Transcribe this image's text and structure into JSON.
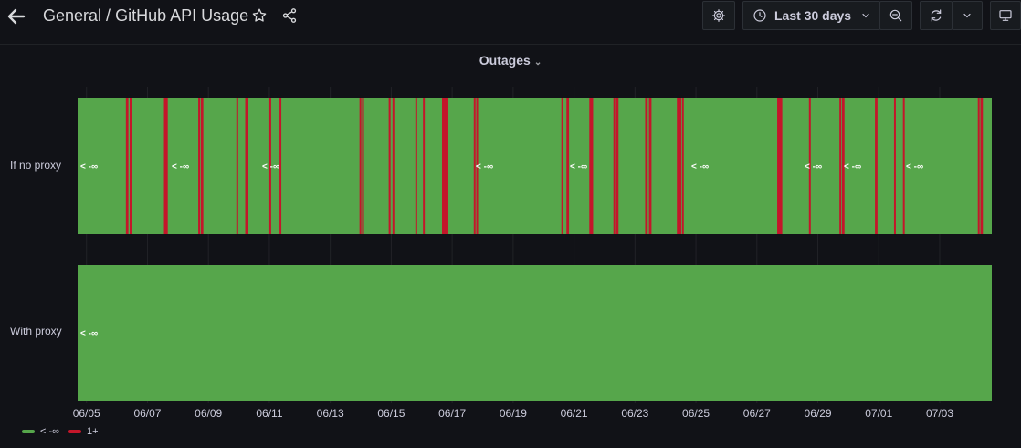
{
  "breadcrumb": {
    "folder": "General",
    "separator": " / ",
    "dashboard": "GitHub API Usage"
  },
  "toolbar": {
    "time_range_label": "Last 30 days",
    "icons": [
      "back-arrow-icon",
      "star-icon",
      "share-icon",
      "gear-icon",
      "clock-icon",
      "chevron-down-icon",
      "zoom-out-icon",
      "refresh-icon",
      "chevron-down-icon",
      "tv-monitor-icon"
    ]
  },
  "panel": {
    "title": "Outages",
    "title_chevron": "⌄"
  },
  "colors": {
    "ok": "#56a64b",
    "outage": "#c4162a",
    "background": "#111217"
  },
  "chart_data": {
    "type": "heatmap",
    "title": "Outages",
    "rows": [
      "If no proxy",
      "With proxy"
    ],
    "x_axis": {
      "ticks": [
        "06/05",
        "06/07",
        "06/09",
        "06/11",
        "06/13",
        "06/15",
        "06/17",
        "06/19",
        "06/21",
        "06/23",
        "06/25",
        "06/27",
        "06/29",
        "07/01",
        "07/03"
      ],
      "start": "06/04 17:00",
      "end": "07/04 17:00"
    },
    "legend": [
      {
        "label": "< -∞",
        "color": "#56a64b"
      },
      {
        "label": "1+",
        "color": "#c4162a"
      }
    ],
    "series": [
      {
        "name": "If no proxy",
        "default_state": "< -∞",
        "value_labels": [
          "< -∞",
          "< -∞",
          "< -∞",
          "< -∞",
          "< -∞",
          "< -∞",
          "< -∞",
          "< -∞",
          "< -∞"
        ],
        "outages_1plus": [
          [
            "06/06 07:00",
            "06/06 09:00"
          ],
          [
            "06/06 10:00",
            "06/06 11:30"
          ],
          [
            "06/07 13:00",
            "06/07 13:30"
          ],
          [
            "06/07 14:00",
            "06/07 16:00"
          ],
          [
            "06/08 16:00",
            "06/08 17:00"
          ],
          [
            "06/08 18:00",
            "06/08 20:00"
          ],
          [
            "06/09 22:00",
            "06/09 23:00"
          ],
          [
            "06/10 05:00",
            "06/10 07:30"
          ],
          [
            "06/11 00:00",
            "06/11 00:30"
          ],
          [
            "06/11 08:00",
            "06/11 08:30"
          ],
          [
            "06/13 23:00",
            "06/14 00:00"
          ],
          [
            "06/14 01:00",
            "06/14 02:30"
          ],
          [
            "06/14 22:00",
            "06/14 23:30"
          ],
          [
            "06/15 01:00",
            "06/15 02:00"
          ],
          [
            "06/15 19:00",
            "06/15 20:00"
          ],
          [
            "06/16 01:00",
            "06/16 02:00"
          ],
          [
            "06/16 16:00",
            "06/16 21:00"
          ],
          [
            "06/17 17:00",
            "06/17 18:00"
          ],
          [
            "06/17 19:00",
            "06/17 20:00"
          ],
          [
            "06/20 14:00",
            "06/20 15:00"
          ],
          [
            "06/20 18:00",
            "06/20 20:00"
          ],
          [
            "06/21 12:00",
            "06/21 15:00"
          ],
          [
            "06/22 07:00",
            "06/22 08:00"
          ],
          [
            "06/22 09:00",
            "06/22 11:00"
          ],
          [
            "06/23 08:00",
            "06/23 10:00"
          ],
          [
            "06/23 11:00",
            "06/23 13:00"
          ],
          [
            "06/24 09:00",
            "06/24 10:00"
          ],
          [
            "06/24 11:00",
            "06/24 12:00"
          ],
          [
            "06/24 13:00",
            "06/24 14:00"
          ],
          [
            "06/27 16:00",
            "06/27 20:00"
          ],
          [
            "06/28 17:00",
            "06/28 18:00"
          ],
          [
            "06/29 17:00",
            "06/29 18:00"
          ],
          [
            "06/29 19:00",
            "06/29 21:00"
          ],
          [
            "06/30 21:00",
            "06/30 23:00"
          ],
          [
            "07/01 12:00",
            "07/01 13:00"
          ],
          [
            "07/01 19:00",
            "07/01 20:00"
          ],
          [
            "07/04 06:00",
            "07/04 07:00"
          ],
          [
            "07/04 08:00",
            "07/04 10:00"
          ]
        ]
      },
      {
        "name": "With proxy",
        "default_state": "< -∞",
        "value_labels": [
          "< -∞"
        ],
        "outages_1plus": []
      }
    ]
  }
}
